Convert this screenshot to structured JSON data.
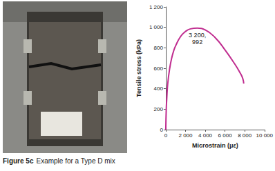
{
  "figure": {
    "number": "Figure 5c",
    "text": "Example for a Type D mix"
  },
  "chart_data": {
    "type": "line",
    "color": "#c02c8f",
    "grid": false,
    "xlabel": "Microstrain (με)",
    "ylabel": "Tensile stress (kPa)",
    "x": [
      0,
      50,
      100,
      200,
      400,
      600,
      800,
      1000,
      1500,
      2000,
      2500,
      3200,
      4000,
      5000,
      6000,
      7000,
      7500,
      7800,
      7900
    ],
    "values": [
      0,
      200,
      300,
      450,
      600,
      700,
      770,
      820,
      910,
      960,
      985,
      992,
      975,
      900,
      780,
      640,
      560,
      500,
      450
    ],
    "xlim": [
      0,
      10000
    ],
    "xticks": [
      0,
      {
        "value": 2000,
        "label": "2 000"
      },
      {
        "value": 4000,
        "label": "4 000"
      },
      {
        "value": 6000,
        "label": "6 000"
      },
      {
        "value": 8000,
        "label": "8 000"
      },
      {
        "value": 10000,
        "label": "10 000"
      }
    ],
    "ylim": [
      0,
      1200
    ],
    "yticks": [
      0,
      200,
      400,
      600,
      800,
      {
        "value": 1000,
        "label": "1 000"
      },
      {
        "value": 1200,
        "label": "1 200"
      }
    ],
    "annotation": {
      "x": 3200,
      "y": 992,
      "label": "3 200,\n992"
    }
  }
}
